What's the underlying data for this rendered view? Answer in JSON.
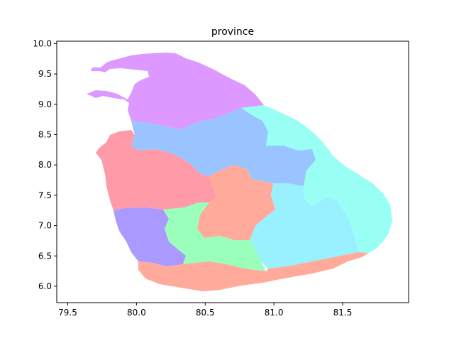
{
  "chart_data": {
    "type": "map",
    "title": "province",
    "xlim": [
      79.42,
      81.98
    ],
    "ylim": [
      5.73,
      10.04
    ],
    "xticks": [
      "79.5",
      "80.0",
      "80.5",
      "81.0",
      "81.5"
    ],
    "xtick_values": [
      79.5,
      80.0,
      80.5,
      81.0,
      81.5
    ],
    "yticks": [
      "6.0",
      "6.5",
      "7.0",
      "7.5",
      "8.0",
      "8.5",
      "9.0",
      "9.5",
      "10.0"
    ],
    "ytick_values": [
      6.0,
      6.5,
      7.0,
      7.5,
      8.0,
      8.5,
      9.0,
      9.5,
      10.0
    ],
    "regions": [
      {
        "id": "northern",
        "color": "#dd99ff"
      },
      {
        "id": "north-central",
        "color": "#99c4ff"
      },
      {
        "id": "eastern",
        "color": "#99fff4"
      },
      {
        "id": "north-western",
        "color": "#ff9aa9"
      },
      {
        "id": "central",
        "color": "#ffaa9a"
      },
      {
        "id": "uva",
        "color": "#99f1ff"
      },
      {
        "id": "western",
        "color": "#aa99ff"
      },
      {
        "id": "sabaragamuwa",
        "color": "#99ffbb"
      },
      {
        "id": "southern",
        "color": "#ffaa9a"
      }
    ]
  }
}
